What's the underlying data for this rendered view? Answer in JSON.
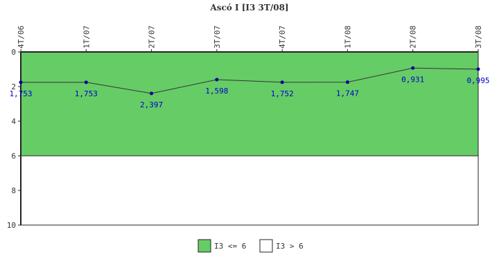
{
  "chart_data": {
    "type": "line",
    "title": "Ascó I [I3 3T/08]",
    "categories": [
      "4T/06",
      "1T/07",
      "2T/07",
      "3T/07",
      "4T/07",
      "1T/08",
      "2T/08",
      "3T/08"
    ],
    "values": [
      1.753,
      1.753,
      2.397,
      1.598,
      1.752,
      1.747,
      0.931,
      0.995
    ],
    "value_labels": [
      "1,753",
      "1,753",
      "2,397",
      "1,598",
      "1,752",
      "1,747",
      "0,931",
      "0,995"
    ],
    "y_ticks": [
      0,
      2,
      4,
      6,
      8,
      10
    ],
    "ylim": [
      0,
      10
    ],
    "y_inverted": true,
    "threshold": 6,
    "bands": [
      {
        "name": "I3 <= 6",
        "from": 0,
        "to": 6,
        "color": "#66cc66"
      },
      {
        "name": "I3 > 6",
        "from": 6,
        "to": 10,
        "color": "#ffffff"
      }
    ],
    "line_color": "#333333",
    "marker_color": "#000099",
    "legend_position": "bottom",
    "grid": false
  }
}
